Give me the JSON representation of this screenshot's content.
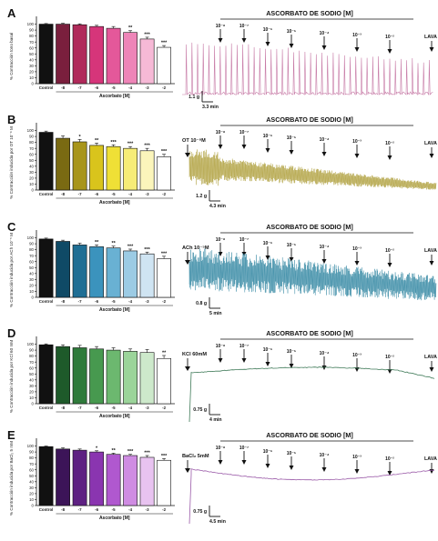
{
  "figure": {
    "panels": [
      {
        "letter": "A",
        "ylabel": "% Contracción tono basal",
        "bar_colors": [
          "#111111",
          "#7a1f3d",
          "#b02a5a",
          "#d6357a",
          "#e4589a",
          "#ee85b8",
          "#f6b9d6",
          "#ffffff"
        ],
        "trace_color": "#c77aa6",
        "trace_style": "spikes",
        "title": "ASCORBATO DE SODIO [M]",
        "agonist": "",
        "conc_labels": [
          "10⁻⁸",
          "10⁻⁷",
          "10⁻⁶",
          "10⁻⁵",
          "10⁻⁴",
          "10⁻³",
          "10⁻²"
        ],
        "lava": "LAVA",
        "scale_v": "1.1 g",
        "scale_h": "3.3 min"
      },
      {
        "letter": "B",
        "ylabel": "% Contracción inducida por OT 10⁻⁸ M",
        "bar_colors": [
          "#111111",
          "#7a6a12",
          "#a8951b",
          "#d9c41c",
          "#efe036",
          "#f6ec77",
          "#fbf5bb",
          "#ffffff"
        ],
        "trace_color": "#b4a64a",
        "trace_style": "dense",
        "title": "ASCORBATO DE SODIO [M]",
        "agonist": "OT 10⁻⁸M",
        "conc_labels": [
          "10⁻⁸",
          "10⁻⁷",
          "10⁻⁶",
          "10⁻⁵",
          "10⁻⁴",
          "10⁻³",
          "10⁻²"
        ],
        "lava": "LAVA",
        "scale_v": "1.2 g",
        "scale_h": "4.3 min"
      },
      {
        "letter": "C",
        "ylabel": "% Contracción inducida por ACh 10⁻⁵ M",
        "bar_colors": [
          "#111111",
          "#0f4a66",
          "#1f6e94",
          "#3b93bd",
          "#69b1d3",
          "#9ccbe4",
          "#cfe4f2",
          "#ffffff"
        ],
        "trace_color": "#3f8fa8",
        "trace_style": "noisy",
        "title": "ASCORBATO DE SODIO [M]",
        "agonist": "ACh 10⁻⁵M",
        "conc_labels": [
          "10⁻⁸",
          "10⁻⁷",
          "10⁻⁶",
          "10⁻⁵",
          "10⁻⁴",
          "10⁻³",
          "10⁻²"
        ],
        "lava": "LAVA",
        "scale_v": "0.8 g",
        "scale_h": "5 min"
      },
      {
        "letter": "D",
        "ylabel": "% Contracción inducida por KCl 60 mM",
        "bar_colors": [
          "#111111",
          "#1e5a2a",
          "#2f7a3b",
          "#47994f",
          "#6cb86f",
          "#9bd49a",
          "#cde9cb",
          "#ffffff"
        ],
        "trace_color": "#3f7a58",
        "trace_style": "plateau",
        "title": "ASCORBATO DE SODIO [M]",
        "agonist": "KCl 60mM",
        "conc_labels": [
          "10⁻⁸",
          "10⁻⁷",
          "10⁻⁶",
          "10⁻⁵",
          "10⁻⁴",
          "10⁻³",
          "10⁻²"
        ],
        "lava": "LAVA",
        "scale_v": "0.75 g",
        "scale_h": "4 min"
      },
      {
        "letter": "E",
        "ylabel": "% Contracción inducida por BaCl₂ 5 mM",
        "bar_colors": [
          "#111111",
          "#3c1458",
          "#5e2182",
          "#8a35b0",
          "#b058cf",
          "#cf8ce2",
          "#e8c3f0",
          "#ffffff"
        ],
        "trace_color": "#9a5aa8",
        "trace_style": "plateau",
        "title": "ASCORBATO DE SODIO [M]",
        "agonist": "BaCl₂ 5mM",
        "conc_labels": [
          "10⁻⁸",
          "10⁻⁷",
          "10⁻⁶",
          "10⁻⁵",
          "10⁻⁴",
          "10⁻³",
          "10⁻²"
        ],
        "lava": "LAVA",
        "scale_v": "0.75 g",
        "scale_h": "4.5 min"
      }
    ],
    "bar_x_labels": [
      "Control",
      "-8",
      "-7",
      "-6",
      "-5",
      "-4",
      "-3",
      "-2"
    ],
    "bar_xlabel": "Ascorbato [M]",
    "y_ticks": [
      "0",
      "10",
      "20",
      "30",
      "40",
      "50",
      "60",
      "70",
      "80",
      "90",
      "100"
    ]
  },
  "chart_data": [
    {
      "type": "bar",
      "panel": "A",
      "categories": [
        "Control",
        "-8",
        "-7",
        "-6",
        "-5",
        "-4",
        "-3",
        "-2"
      ],
      "values": [
        100,
        100,
        99,
        96,
        93,
        86,
        75,
        61
      ],
      "errors": [
        1,
        1.5,
        1.5,
        2,
        3,
        3,
        3,
        3
      ],
      "significance": [
        "",
        "",
        "",
        "",
        "",
        "**",
        "***",
        "***"
      ],
      "ylim": [
        0,
        110
      ]
    },
    {
      "type": "bar",
      "panel": "B",
      "categories": [
        "Control",
        "-8",
        "-7",
        "-6",
        "-5",
        "-4",
        "-3",
        "-2"
      ],
      "values": [
        97,
        87,
        81,
        75,
        73,
        70,
        66,
        56
      ],
      "errors": [
        2,
        4,
        4,
        4,
        3,
        3,
        4,
        4
      ],
      "significance": [
        "",
        "",
        "*",
        "**",
        "***",
        "***",
        "***",
        "***"
      ],
      "ylim": [
        0,
        110
      ]
    },
    {
      "type": "bar",
      "panel": "C",
      "categories": [
        "Control",
        "-8",
        "-7",
        "-6",
        "-5",
        "-4",
        "-3",
        "-2"
      ],
      "values": [
        98,
        94,
        88,
        85,
        83,
        78,
        73,
        65
      ],
      "errors": [
        1.5,
        2,
        3,
        3,
        3,
        3,
        3,
        4
      ],
      "significance": [
        "",
        "",
        "",
        "**",
        "**",
        "***",
        "***",
        "***"
      ],
      "ylim": [
        0,
        110
      ]
    },
    {
      "type": "bar",
      "panel": "D",
      "categories": [
        "Control",
        "-8",
        "-7",
        "-6",
        "-5",
        "-4",
        "-3",
        "-2"
      ],
      "values": [
        99,
        96,
        94,
        92,
        90,
        88,
        86,
        76
      ],
      "errors": [
        1.5,
        3,
        4,
        4,
        4,
        4,
        5,
        5
      ],
      "significance": [
        "",
        "",
        "",
        "",
        "",
        "",
        "",
        "**"
      ],
      "ylim": [
        0,
        110
      ]
    },
    {
      "type": "bar",
      "panel": "E",
      "categories": [
        "Control",
        "-8",
        "-7",
        "-6",
        "-5",
        "-4",
        "-3",
        "-2"
      ],
      "values": [
        99,
        95,
        93,
        90,
        86,
        84,
        81,
        76
      ],
      "errors": [
        1,
        2,
        2,
        2,
        2,
        2,
        3,
        3
      ],
      "significance": [
        "",
        "",
        "",
        "*",
        "**",
        "***",
        "***",
        "***"
      ],
      "ylim": [
        0,
        110
      ]
    }
  ]
}
